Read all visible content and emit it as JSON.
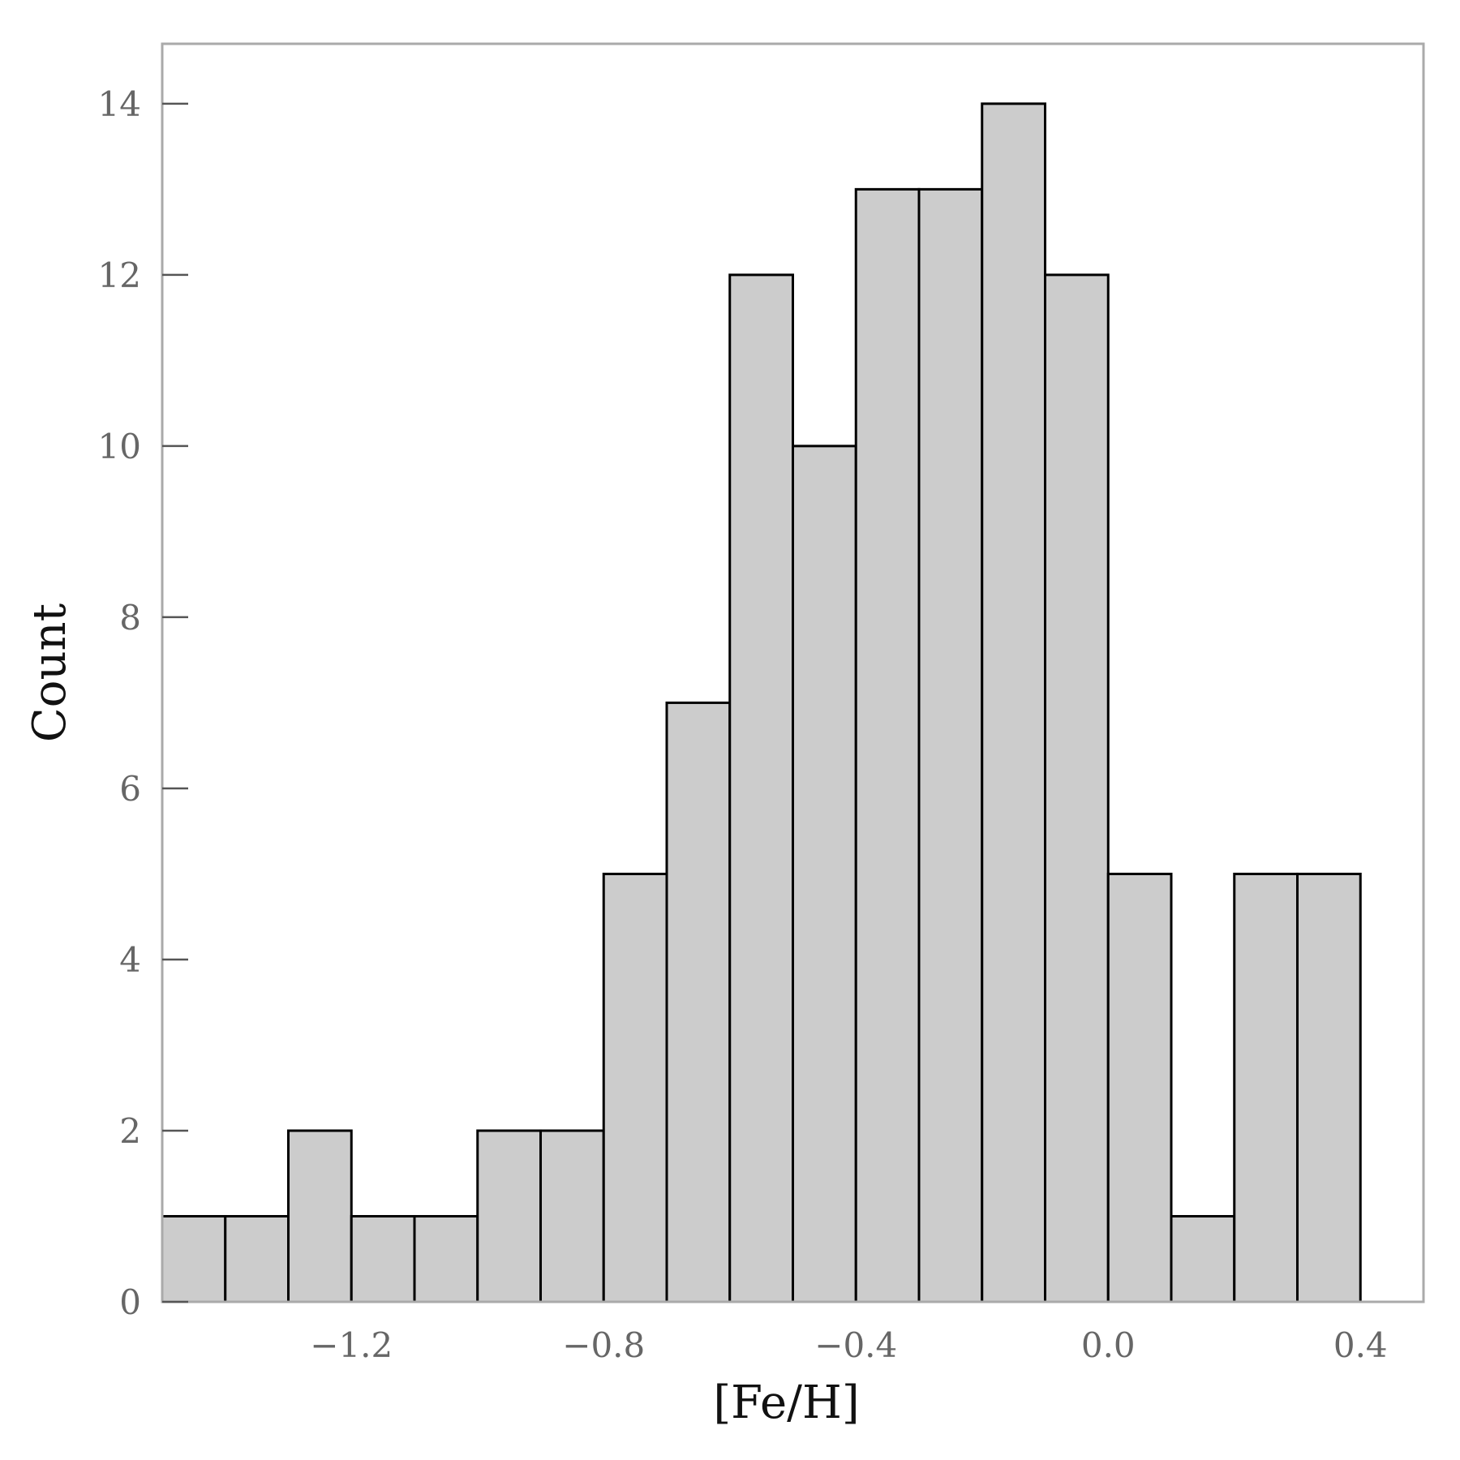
{
  "chart_data": {
    "type": "bar",
    "title": "",
    "xlabel": "[Fe/H]",
    "ylabel": "Count",
    "bin_edges": [
      -1.5,
      -1.4,
      -1.3,
      -1.2,
      -1.1,
      -1.0,
      -0.9,
      -0.8,
      -0.7,
      -0.6,
      -0.5,
      -0.4,
      -0.3,
      -0.2,
      -0.1,
      0.0,
      0.1,
      0.2,
      0.3,
      0.4
    ],
    "values": [
      1,
      1,
      2,
      1,
      1,
      2,
      2,
      5,
      7,
      12,
      10,
      13,
      13,
      14,
      12,
      5,
      1,
      5,
      5
    ],
    "xlim": [
      -1.5,
      0.5
    ],
    "ylim": [
      0,
      14.7
    ],
    "xticks": [
      {
        "value": -1.2,
        "label": "−1.2"
      },
      {
        "value": -0.8,
        "label": "−0.8"
      },
      {
        "value": -0.4,
        "label": "−0.4"
      },
      {
        "value": 0.0,
        "label": "0.0"
      },
      {
        "value": 0.4,
        "label": "0.4"
      }
    ],
    "yticks": [
      {
        "value": 0,
        "label": "0"
      },
      {
        "value": 2,
        "label": "2"
      },
      {
        "value": 4,
        "label": "4"
      },
      {
        "value": 6,
        "label": "6"
      },
      {
        "value": 8,
        "label": "8"
      },
      {
        "value": 10,
        "label": "10"
      },
      {
        "value": 12,
        "label": "12"
      },
      {
        "value": 14,
        "label": "14"
      }
    ],
    "grid": false,
    "legend": "none",
    "colors": {
      "bar_fill": "#cccccc",
      "bar_edge": "#000000",
      "frame": "#aaaaaa",
      "tick_label": "#666666"
    }
  }
}
